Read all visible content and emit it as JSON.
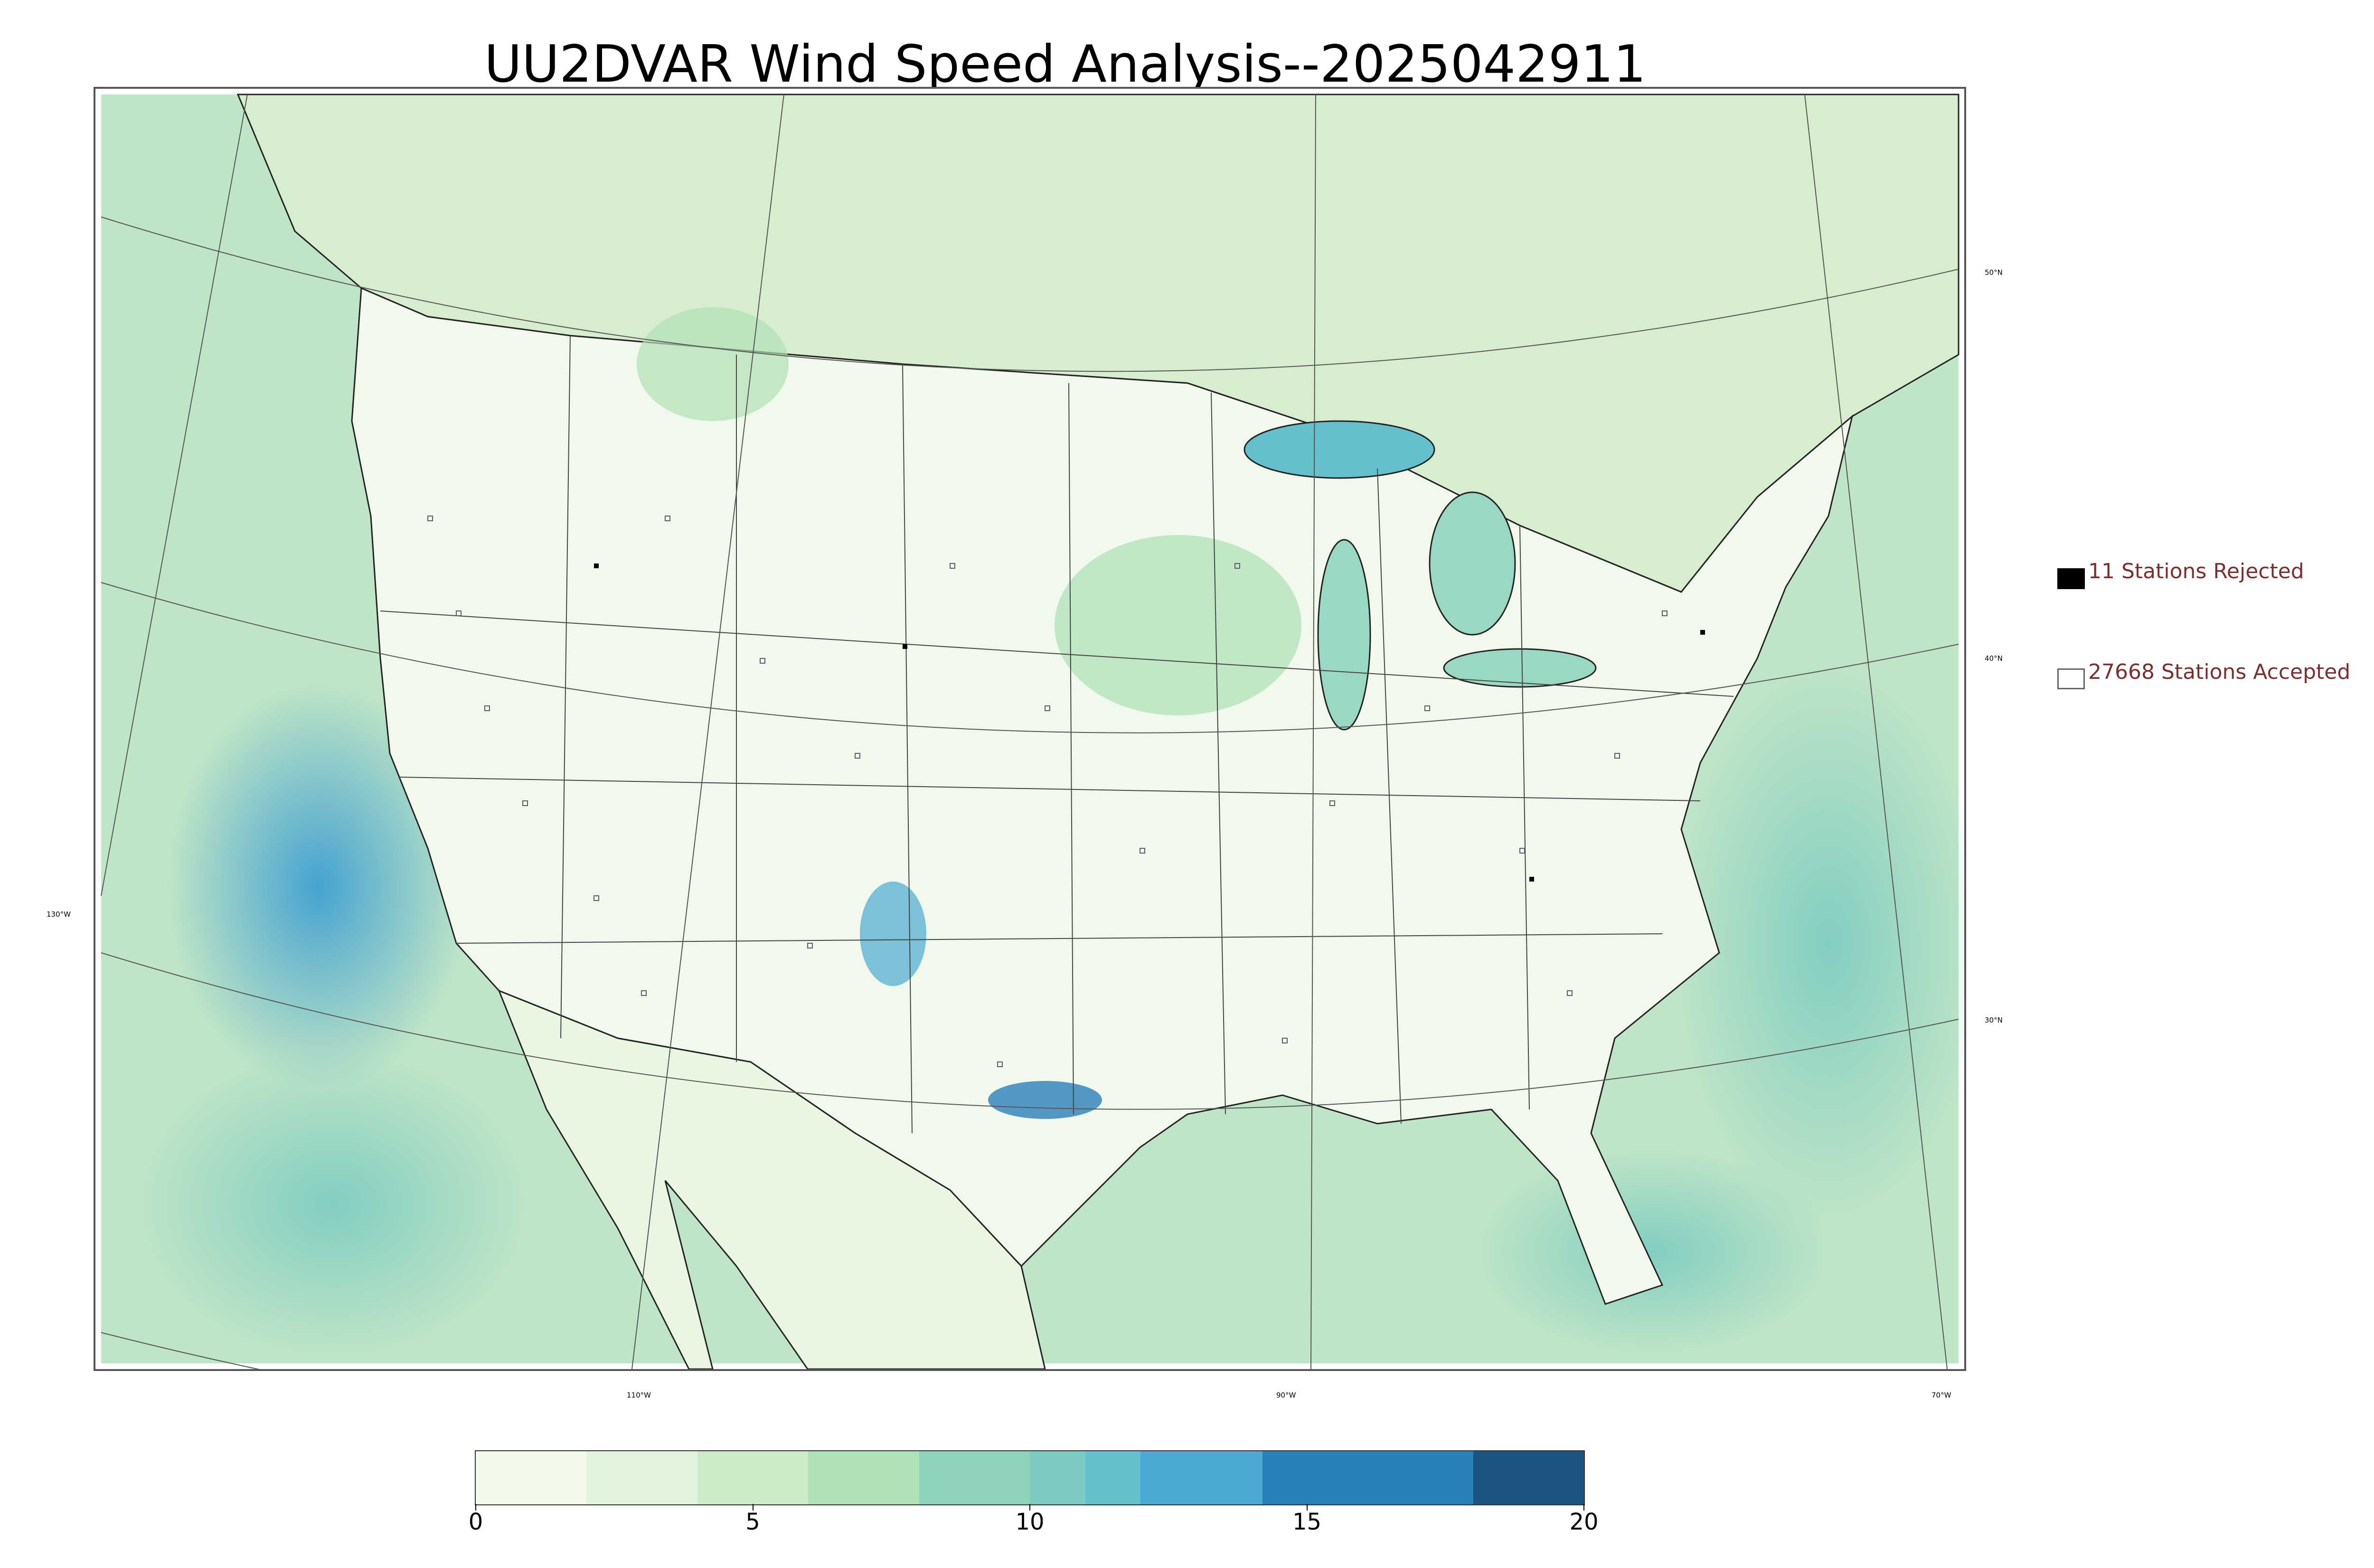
{
  "title": "UU2DVAR Wind Speed Analysis--2025042911",
  "graticule_labels": {
    "lat_50": "50°N",
    "lat_40": "40°N",
    "lat_30": "30°N",
    "lon_130": "130°W",
    "lon_110": "110°W",
    "lon_90": "90°W",
    "lon_70": "70°W"
  },
  "legend": {
    "rejected": {
      "label": "11 Stations Rejected",
      "fill": "#000000"
    },
    "accepted": {
      "label": "27668 Stations Accepted",
      "fill": "#ffffff"
    }
  },
  "colorbar": {
    "ticks": [
      "0",
      "5",
      "10",
      "15",
      "20"
    ],
    "min": 0,
    "max": 20,
    "bands": [
      {
        "from": 0,
        "to": 2,
        "color": "#f2faea"
      },
      {
        "from": 2,
        "to": 4,
        "color": "#e3f4dc"
      },
      {
        "from": 4,
        "to": 6,
        "color": "#cdebc6"
      },
      {
        "from": 6,
        "to": 8,
        "color": "#b0e0b7"
      },
      {
        "from": 8,
        "to": 10,
        "color": "#8fd3bd"
      },
      {
        "from": 10,
        "to": 11,
        "color": "#7ccbc1"
      },
      {
        "from": 11,
        "to": 12,
        "color": "#66bfcc"
      },
      {
        "from": 12,
        "to": 14.2,
        "color": "#49a9d2"
      },
      {
        "from": 14.2,
        "to": 18,
        "color": "#2a80b9"
      },
      {
        "from": 18,
        "to": 20,
        "color": "#1d5482"
      }
    ]
  },
  "colors": {
    "ocean_base": "#bfe5c6",
    "land_base": "#f1f9ec",
    "state_line": "#222222",
    "station_outline": "#5a5a6a"
  }
}
